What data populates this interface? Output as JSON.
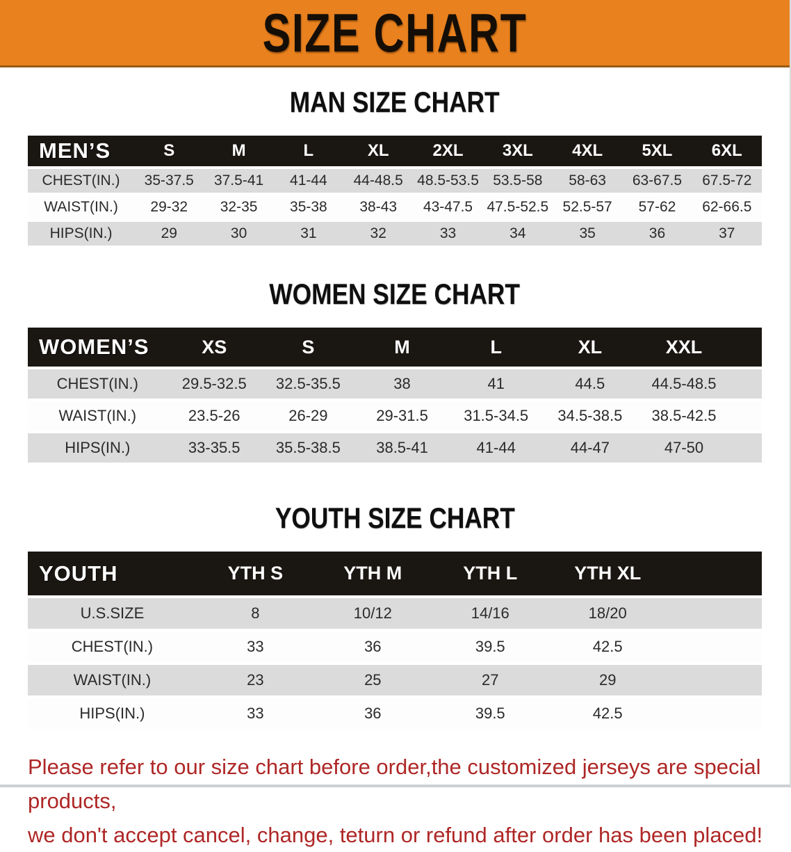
{
  "banner": {
    "title": "SIZE CHART",
    "bg_color": "#E8811E"
  },
  "sections": [
    {
      "heading": "MAN SIZE CHART",
      "table": {
        "header_label": "MEN’S",
        "columns": [
          "S",
          "M",
          "L",
          "XL",
          "2XL",
          "3XL",
          "4XL",
          "5XL",
          "6XL"
        ],
        "rows": [
          {
            "label": "CHEST(IN.)",
            "values": [
              "35-37.5",
              "37.5-41",
              "41-44",
              "44-48.5",
              "48.5-53.5",
              "53.5-58",
              "58-63",
              "63-67.5",
              "67.5-72"
            ]
          },
          {
            "label": "WAIST(IN.)",
            "values": [
              "29-32",
              "32-35",
              "35-38",
              "38-43",
              "43-47.5",
              "47.5-52.5",
              "52.5-57",
              "57-62",
              "62-66.5"
            ]
          },
          {
            "label": "HIPS(IN.)",
            "values": [
              "29",
              "30",
              "31",
              "32",
              "33",
              "34",
              "35",
              "36",
              "37"
            ]
          }
        ]
      }
    },
    {
      "heading": "WOMEN SIZE CHART",
      "table": {
        "header_label": "WOMEN’S",
        "columns": [
          "XS",
          "S",
          "M",
          "L",
          "XL",
          "XXL"
        ],
        "rows": [
          {
            "label": "CHEST(IN.)",
            "values": [
              "29.5-32.5",
              "32.5-35.5",
              "38",
              "41",
              "44.5",
              "44.5-48.5"
            ]
          },
          {
            "label": "WAIST(IN.)",
            "values": [
              "23.5-26",
              "26-29",
              "29-31.5",
              "31.5-34.5",
              "34.5-38.5",
              "38.5-42.5"
            ]
          },
          {
            "label": "HIPS(IN.)",
            "values": [
              "33-35.5",
              "35.5-38.5",
              "38.5-41",
              "41-44",
              "44-47",
              "47-50"
            ]
          }
        ]
      }
    },
    {
      "heading": "YOUTH SIZE CHART",
      "table": {
        "header_label": "YOUTH",
        "columns": [
          "YTH S",
          "YTH M",
          "YTH L",
          "YTH XL"
        ],
        "rows": [
          {
            "label": "U.S.SIZE",
            "values": [
              "8",
              "10/12",
              "14/16",
              "18/20"
            ]
          },
          {
            "label": "CHEST(IN.)",
            "values": [
              "33",
              "36",
              "39.5",
              "42.5"
            ]
          },
          {
            "label": "WAIST(IN.)",
            "values": [
              "23",
              "25",
              "27",
              "29"
            ]
          },
          {
            "label": "HIPS(IN.)",
            "values": [
              "33",
              "36",
              "39.5",
              "42.5"
            ]
          }
        ]
      }
    }
  ],
  "disclaimer": {
    "line1": "Please refer to our size chart before order,the customized jerseys are special products,",
    "line2": "we don't accept cancel, change, teturn or refund after order has been placed!",
    "color": "#AE2726"
  }
}
